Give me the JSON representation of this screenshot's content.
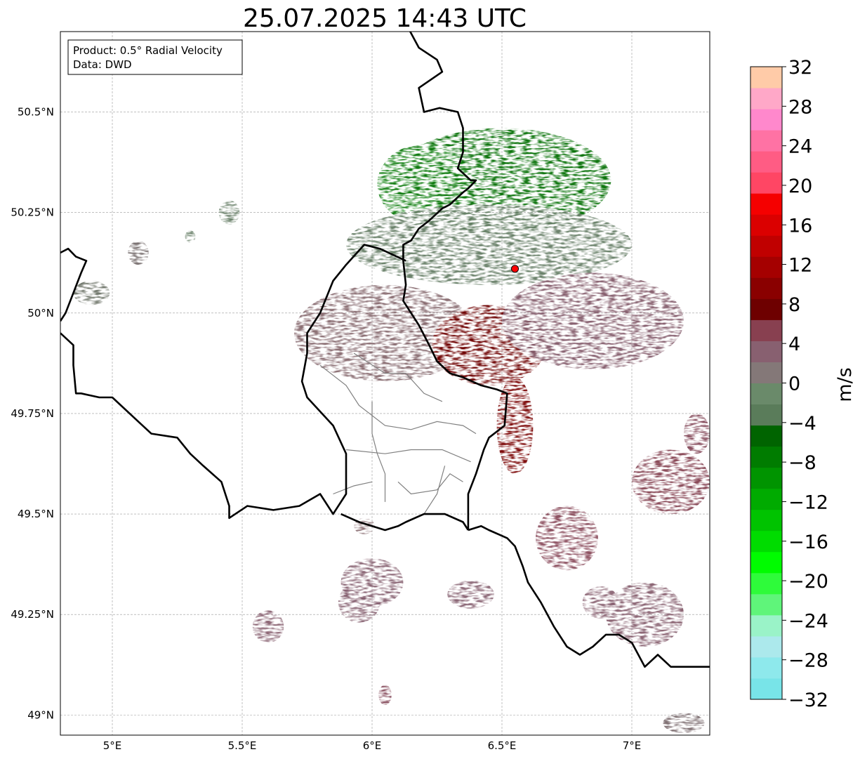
{
  "title": "25.07.2025 14:43 UTC",
  "info_box": {
    "line1": "Product: 0.5° Radial Velocity",
    "line2": "Data: DWD"
  },
  "map": {
    "lon_range": [
      4.8,
      7.3
    ],
    "lat_range": [
      48.95,
      50.7
    ],
    "lon_ticks": [
      {
        "value": 5.0,
        "label": "5°E"
      },
      {
        "value": 5.5,
        "label": "5.5°E"
      },
      {
        "value": 6.0,
        "label": "6°E"
      },
      {
        "value": 6.5,
        "label": "6.5°E"
      },
      {
        "value": 7.0,
        "label": "7°E"
      }
    ],
    "lat_ticks": [
      {
        "value": 50.5,
        "label": "50.5°N"
      },
      {
        "value": 50.25,
        "label": "50.25°N"
      },
      {
        "value": 50.0,
        "label": "50°N"
      },
      {
        "value": 49.75,
        "label": "49.75°N"
      },
      {
        "value": 49.5,
        "label": "49.5°N"
      },
      {
        "value": 49.25,
        "label": "49.25°N"
      },
      {
        "value": 49.0,
        "label": "49°N"
      }
    ],
    "grid": true,
    "radar_site": {
      "lon": 6.55,
      "lat": 50.11,
      "color": "#ff0000"
    }
  },
  "colorbar": {
    "label": "m/s",
    "min": -32,
    "max": 32,
    "ticks": [
      "32",
      "28",
      "24",
      "20",
      "16",
      "12",
      "8",
      "4",
      "0",
      "−4",
      "−8",
      "−12",
      "−16",
      "−20",
      "−24",
      "−28",
      "−32"
    ],
    "colors_bottom_to_top": [
      "#78e4e8",
      "#8ee9ec",
      "#ace9ec",
      "#9af3c8",
      "#5ff57a",
      "#2efb3a",
      "#00fc00",
      "#00dc00",
      "#00c300",
      "#00ab00",
      "#009400",
      "#007c00",
      "#006400",
      "#5a7c5a",
      "#6a8a6a",
      "#847878",
      "#886070",
      "#884050",
      "#6e0000",
      "#8a0000",
      "#a50000",
      "#c00000",
      "#db0000",
      "#f50000",
      "#ff4664",
      "#ff5c84",
      "#ff72a4",
      "#ff88cc",
      "#ffa8c8",
      "#ffcba8"
    ]
  },
  "velocity_regions": [
    {
      "name": "inbound-north",
      "lon": 6.5,
      "lat": 50.33,
      "rlon": 0.42,
      "rlat": 0.13,
      "color": "#006e00"
    },
    {
      "name": "inbound-northwest",
      "lon": 6.2,
      "lat": 50.32,
      "rlon": 0.18,
      "rlat": 0.1,
      "color": "#0a7a0a"
    },
    {
      "name": "weak-inbound-ring",
      "lon": 6.45,
      "lat": 50.17,
      "rlon": 0.55,
      "rlat": 0.1,
      "color": "#647c64"
    },
    {
      "name": "weak-outbound-west",
      "lon": 6.05,
      "lat": 49.95,
      "rlon": 0.35,
      "rlat": 0.12,
      "color": "#86686e"
    },
    {
      "name": "outbound-core",
      "lon": 6.45,
      "lat": 49.92,
      "rlon": 0.22,
      "rlat": 0.1,
      "color": "#6e0000"
    },
    {
      "name": "outbound-south",
      "lon": 6.55,
      "lat": 49.72,
      "rlon": 0.07,
      "rlat": 0.12,
      "color": "#780000"
    },
    {
      "name": "weak-outbound-east",
      "lon": 6.85,
      "lat": 49.98,
      "rlon": 0.35,
      "rlat": 0.12,
      "color": "#825868"
    },
    {
      "name": "cell-southeast-1",
      "lon": 6.75,
      "lat": 49.44,
      "rlon": 0.12,
      "rlat": 0.08,
      "color": "#884858"
    },
    {
      "name": "cell-east-1",
      "lon": 7.15,
      "lat": 49.58,
      "rlon": 0.15,
      "rlat": 0.08,
      "color": "#844050"
    },
    {
      "name": "cell-south-1",
      "lon": 6.0,
      "lat": 49.33,
      "rlon": 0.12,
      "rlat": 0.06,
      "color": "#866070"
    },
    {
      "name": "cell-south-2",
      "lon": 5.95,
      "lat": 49.28,
      "rlon": 0.08,
      "rlat": 0.05,
      "color": "#866070"
    },
    {
      "name": "cell-south-3",
      "lon": 6.38,
      "lat": 49.3,
      "rlon": 0.09,
      "rlat": 0.035,
      "color": "#866070"
    },
    {
      "name": "cell-southeast-2",
      "lon": 7.05,
      "lat": 49.25,
      "rlon": 0.15,
      "rlat": 0.08,
      "color": "#865e6e"
    },
    {
      "name": "cell-southeast-3",
      "lon": 6.88,
      "lat": 49.28,
      "rlon": 0.07,
      "rlat": 0.04,
      "color": "#886070"
    },
    {
      "name": "cell-sw-1",
      "lon": 5.6,
      "lat": 49.22,
      "rlon": 0.06,
      "rlat": 0.04,
      "color": "#865e6e"
    },
    {
      "name": "cell-south-4",
      "lon": 6.05,
      "lat": 49.05,
      "rlon": 0.025,
      "rlat": 0.025,
      "color": "#844858"
    },
    {
      "name": "cell-belgium-1",
      "lon": 5.45,
      "lat": 50.25,
      "rlon": 0.04,
      "rlat": 0.03,
      "color": "#647c64"
    },
    {
      "name": "cell-belgium-2",
      "lon": 5.1,
      "lat": 50.15,
      "rlon": 0.04,
      "rlat": 0.03,
      "color": "#746a6a"
    },
    {
      "name": "cell-belgium-3",
      "lon": 4.92,
      "lat": 50.05,
      "rlon": 0.07,
      "rlat": 0.03,
      "color": "#6e7468"
    },
    {
      "name": "cell-belgium-4",
      "lon": 5.3,
      "lat": 50.19,
      "rlon": 0.02,
      "rlat": 0.015,
      "color": "#647c64"
    },
    {
      "name": "cell-lux-1",
      "lon": 5.97,
      "lat": 49.47,
      "rlon": 0.04,
      "rlat": 0.02,
      "color": "#86686e"
    },
    {
      "name": "cell-far-southeast",
      "lon": 7.2,
      "lat": 48.98,
      "rlon": 0.08,
      "rlat": 0.025,
      "color": "#7a6a6e"
    },
    {
      "name": "cell-east-2",
      "lon": 7.25,
      "lat": 49.7,
      "rlon": 0.05,
      "rlat": 0.05,
      "color": "#844858"
    }
  ],
  "borders": {
    "country_lines": [
      [
        [
          6.13,
          50.72
        ],
        [
          6.18,
          50.66
        ],
        [
          6.25,
          50.63
        ],
        [
          6.27,
          50.6
        ],
        [
          6.18,
          50.56
        ],
        [
          6.2,
          50.5
        ],
        [
          6.26,
          50.51
        ],
        [
          6.33,
          50.5
        ],
        [
          6.35,
          50.46
        ],
        [
          6.35,
          50.4
        ],
        [
          6.33,
          50.36
        ],
        [
          6.38,
          50.33
        ],
        [
          6.4,
          50.33
        ],
        [
          6.37,
          50.31
        ],
        [
          6.35,
          50.3
        ],
        [
          6.3,
          50.27
        ],
        [
          6.27,
          50.26
        ],
        [
          6.22,
          50.23
        ],
        [
          6.18,
          50.21
        ],
        [
          6.15,
          50.18
        ],
        [
          6.12,
          50.17
        ],
        [
          6.12,
          50.13
        ],
        [
          6.13,
          50.07
        ],
        [
          6.12,
          50.03
        ],
        [
          6.15,
          50.0
        ],
        [
          6.18,
          49.97
        ],
        [
          6.22,
          49.92
        ],
        [
          6.25,
          49.88
        ],
        [
          6.3,
          49.85
        ],
        [
          6.35,
          49.84
        ],
        [
          6.42,
          49.82
        ],
        [
          6.48,
          49.81
        ],
        [
          6.52,
          49.8
        ],
        [
          6.51,
          49.72
        ],
        [
          6.45,
          49.69
        ],
        [
          6.43,
          49.66
        ],
        [
          6.4,
          49.6
        ],
        [
          6.37,
          49.55
        ],
        [
          6.37,
          49.46
        ]
      ],
      [
        [
          6.37,
          49.46
        ],
        [
          6.42,
          49.47
        ],
        [
          6.45,
          49.46
        ],
        [
          6.52,
          49.44
        ],
        [
          6.55,
          49.42
        ],
        [
          6.58,
          49.37
        ],
        [
          6.6,
          49.33
        ],
        [
          6.65,
          49.28
        ],
        [
          6.7,
          49.22
        ],
        [
          6.75,
          49.17
        ],
        [
          6.8,
          49.15
        ],
        [
          6.85,
          49.17
        ],
        [
          6.9,
          49.2
        ],
        [
          6.95,
          49.2
        ],
        [
          7.0,
          49.18
        ],
        [
          7.05,
          49.12
        ],
        [
          7.1,
          49.15
        ],
        [
          7.15,
          49.12
        ],
        [
          7.2,
          49.12
        ],
        [
          7.25,
          49.12
        ],
        [
          7.3,
          49.12
        ]
      ],
      [
        [
          6.13,
          50.13
        ],
        [
          6.03,
          50.16
        ],
        [
          5.97,
          50.17
        ],
        [
          5.9,
          50.12
        ],
        [
          5.85,
          50.08
        ],
        [
          5.8,
          50.0
        ],
        [
          5.75,
          49.95
        ],
        [
          5.75,
          49.9
        ],
        [
          5.73,
          49.83
        ],
        [
          5.75,
          49.79
        ],
        [
          5.85,
          49.72
        ],
        [
          5.9,
          49.65
        ],
        [
          5.9,
          49.55
        ],
        [
          5.85,
          49.5
        ],
        [
          5.8,
          49.55
        ],
        [
          5.72,
          49.52
        ],
        [
          5.62,
          49.51
        ],
        [
          5.52,
          49.52
        ],
        [
          5.45,
          49.49
        ],
        [
          5.45,
          49.52
        ],
        [
          5.42,
          49.58
        ],
        [
          5.35,
          49.62
        ],
        [
          5.3,
          49.65
        ],
        [
          5.25,
          49.69
        ],
        [
          5.15,
          49.7
        ],
        [
          5.1,
          49.73
        ],
        [
          5.0,
          49.79
        ],
        [
          4.95,
          49.79
        ],
        [
          4.88,
          49.8
        ],
        [
          4.86,
          49.8
        ],
        [
          4.85,
          49.87
        ],
        [
          4.85,
          49.92
        ],
        [
          4.8,
          49.95
        ]
      ],
      [
        [
          4.8,
          50.15
        ],
        [
          4.83,
          50.16
        ],
        [
          4.86,
          50.14
        ],
        [
          4.9,
          50.13
        ],
        [
          4.88,
          50.1
        ],
        [
          4.85,
          50.05
        ],
        [
          4.82,
          50.0
        ],
        [
          4.8,
          49.98
        ]
      ],
      [
        [
          5.88,
          49.5
        ],
        [
          5.95,
          49.48
        ],
        [
          6.05,
          49.46
        ],
        [
          6.1,
          49.47
        ],
        [
          6.13,
          49.48
        ],
        [
          6.2,
          49.5
        ],
        [
          6.28,
          49.5
        ],
        [
          6.35,
          49.48
        ],
        [
          6.37,
          49.46
        ]
      ]
    ],
    "admin_lines": [
      [
        [
          5.8,
          49.87
        ],
        [
          5.9,
          49.82
        ],
        [
          5.95,
          49.77
        ],
        [
          6.05,
          49.72
        ],
        [
          6.15,
          49.71
        ],
        [
          6.25,
          49.73
        ],
        [
          6.35,
          49.72
        ],
        [
          6.4,
          49.7
        ]
      ],
      [
        [
          6.0,
          49.78
        ],
        [
          6.0,
          49.7
        ],
        [
          6.02,
          49.65
        ],
        [
          6.05,
          49.6
        ],
        [
          6.05,
          49.53
        ]
      ],
      [
        [
          5.9,
          49.66
        ],
        [
          6.05,
          49.65
        ],
        [
          6.15,
          49.66
        ],
        [
          6.27,
          49.66
        ],
        [
          6.38,
          49.63
        ]
      ],
      [
        [
          6.1,
          49.58
        ],
        [
          6.15,
          49.55
        ],
        [
          6.25,
          49.56
        ],
        [
          6.3,
          49.6
        ],
        [
          6.35,
          49.58
        ]
      ],
      [
        [
          5.85,
          49.55
        ],
        [
          5.93,
          49.57
        ],
        [
          6.0,
          49.58
        ]
      ],
      [
        [
          6.2,
          49.5
        ],
        [
          6.25,
          49.55
        ],
        [
          6.28,
          49.62
        ]
      ],
      [
        [
          5.93,
          49.9
        ],
        [
          6.05,
          49.85
        ],
        [
          6.13,
          49.85
        ],
        [
          6.2,
          49.8
        ],
        [
          6.27,
          49.78
        ]
      ]
    ]
  }
}
